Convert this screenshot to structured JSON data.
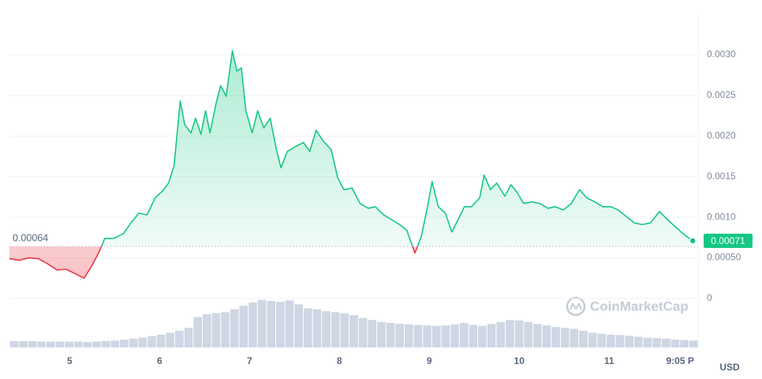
{
  "chart_data": {
    "type": "line",
    "x": [
      4.33,
      4.44,
      4.54,
      4.65,
      4.75,
      4.86,
      4.96,
      5.07,
      5.16,
      5.25,
      5.33,
      5.39,
      5.49,
      5.6,
      5.68,
      5.77,
      5.86,
      5.95,
      6.03,
      6.1,
      6.16,
      6.23,
      6.28,
      6.35,
      6.4,
      6.46,
      6.51,
      6.56,
      6.63,
      6.68,
      6.74,
      6.81,
      6.86,
      6.91,
      6.96,
      7.03,
      7.09,
      7.16,
      7.23,
      7.3,
      7.35,
      7.42,
      7.51,
      7.6,
      7.67,
      7.74,
      7.82,
      7.91,
      7.98,
      8.05,
      8.14,
      8.23,
      8.32,
      8.4,
      8.49,
      8.58,
      8.67,
      8.75,
      8.84,
      8.91,
      8.98,
      9.03,
      9.1,
      9.18,
      9.25,
      9.32,
      9.39,
      9.47,
      9.56,
      9.61,
      9.68,
      9.75,
      9.84,
      9.91,
      9.98,
      10.05,
      10.14,
      10.23,
      10.32,
      10.4,
      10.49,
      10.58,
      10.67,
      10.75,
      10.84,
      10.93,
      11.02,
      11.1,
      11.19,
      11.28,
      11.37,
      11.46,
      11.56,
      11.65,
      11.73,
      11.82,
      11.93
    ],
    "series": [
      {
        "values": [
          0.00049,
          0.00047,
          0.0005,
          0.00049,
          0.00043,
          0.00035,
          0.00036,
          0.0003,
          0.00025,
          0.00041,
          0.00058,
          0.00074,
          0.00074,
          0.0008,
          0.00093,
          0.00105,
          0.00103,
          0.00124,
          0.00132,
          0.00142,
          0.00163,
          0.00243,
          0.00214,
          0.00204,
          0.00222,
          0.00202,
          0.00231,
          0.00204,
          0.00241,
          0.00262,
          0.00249,
          0.00305,
          0.0028,
          0.00284,
          0.00231,
          0.00204,
          0.00231,
          0.0021,
          0.00222,
          0.00183,
          0.00161,
          0.00181,
          0.00187,
          0.00192,
          0.00181,
          0.00207,
          0.00194,
          0.00183,
          0.00149,
          0.00134,
          0.00136,
          0.00117,
          0.00111,
          0.00113,
          0.00103,
          0.00097,
          0.00091,
          0.00084,
          0.00056,
          0.00076,
          0.00113,
          0.00144,
          0.00113,
          0.00105,
          0.00082,
          0.00097,
          0.00113,
          0.00113,
          0.00124,
          0.00152,
          0.00134,
          0.00142,
          0.00126,
          0.0014,
          0.0013,
          0.00117,
          0.00119,
          0.00117,
          0.00111,
          0.00113,
          0.00109,
          0.00117,
          0.00134,
          0.00124,
          0.00119,
          0.00113,
          0.00113,
          0.00109,
          0.00101,
          0.00093,
          0.00091,
          0.00093,
          0.00107,
          0.00097,
          0.00089,
          0.0008,
          0.00071
        ],
        "color": "#16c784",
        "color_below": "#ea3943"
      }
    ],
    "reference": 0.00064,
    "current": 0.00071,
    "xlim": [
      4.33,
      11.99
    ],
    "xticks": [
      5,
      6,
      7,
      8,
      9,
      10,
      11,
      {
        "value": 11.79,
        "label": "9:05 P"
      }
    ],
    "ylim": [
      0,
      0.0035
    ],
    "yticks": [
      0,
      {
        "value": 0.0005,
        "label": "0.00050"
      },
      {
        "value": 0.001,
        "label": "0.0010"
      },
      0.0015,
      {
        "value": 0.002,
        "label": "0.0020"
      },
      0.0025,
      {
        "value": 0.003,
        "label": "0.0030"
      }
    ],
    "grid": true,
    "y_axis_label": "USD",
    "watermark": "CoinMarketCap",
    "volume": {
      "color": "#cfd6e4",
      "ylim": [
        0,
        100
      ],
      "values": [
        13,
        13,
        13,
        12,
        12,
        12,
        12,
        12,
        11,
        12,
        13,
        14,
        16,
        18,
        20,
        23,
        26,
        30,
        34,
        40,
        62,
        68,
        70,
        72,
        78,
        85,
        92,
        97,
        95,
        93,
        96,
        88,
        80,
        78,
        74,
        72,
        70,
        66,
        60,
        56,
        52,
        50,
        48,
        47,
        46,
        45,
        44,
        45,
        47,
        50,
        46,
        44,
        48,
        52,
        56,
        55,
        52,
        48,
        45,
        42,
        40,
        38,
        34,
        30,
        28,
        26,
        25,
        24,
        22,
        20,
        19,
        18,
        16,
        15,
        14
      ]
    }
  }
}
